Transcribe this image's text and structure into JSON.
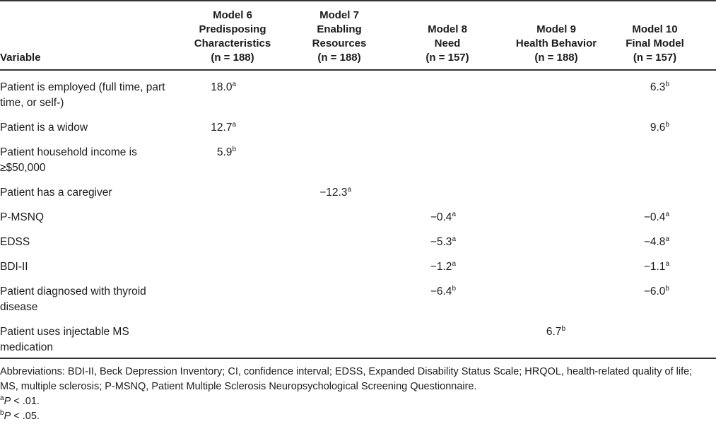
{
  "table": {
    "header": {
      "variable_label": "Variable",
      "models": [
        {
          "lines": [
            "Model 6",
            "Predisposing",
            "Characteristics",
            "(n = 188)"
          ]
        },
        {
          "lines": [
            "Model 7",
            "Enabling",
            "Resources",
            "(n = 188)"
          ]
        },
        {
          "lines": [
            "Model 8",
            "Need",
            "(n = 157)"
          ]
        },
        {
          "lines": [
            "Model 9",
            "Health Behavior",
            "(n = 188)"
          ]
        },
        {
          "lines": [
            "Model 10",
            "Final Model",
            "(n = 157)"
          ]
        }
      ]
    },
    "rows": [
      {
        "variable": "Patient is employed (full time, part time, or self-)",
        "values": [
          {
            "v": "18.0",
            "sup": "a"
          },
          null,
          null,
          null,
          {
            "v": "6.3",
            "sup": "b"
          }
        ]
      },
      {
        "variable": "Patient is a widow",
        "values": [
          {
            "v": "12.7",
            "sup": "a"
          },
          null,
          null,
          null,
          {
            "v": "9.6",
            "sup": "b"
          }
        ]
      },
      {
        "variable": "Patient household income is ≥$50,000",
        "values": [
          {
            "v": "5.9",
            "sup": "b"
          },
          null,
          null,
          null,
          null
        ]
      },
      {
        "variable": "Patient has a caregiver",
        "values": [
          null,
          {
            "v": "−12.3",
            "sup": "a"
          },
          null,
          null,
          null
        ]
      },
      {
        "variable": "P-MSNQ",
        "values": [
          null,
          null,
          {
            "v": "−0.4",
            "sup": "a"
          },
          null,
          {
            "v": "−0.4",
            "sup": "a"
          }
        ]
      },
      {
        "variable": "EDSS",
        "values": [
          null,
          null,
          {
            "v": "−5.3",
            "sup": "a"
          },
          null,
          {
            "v": "−4.8",
            "sup": "a"
          }
        ]
      },
      {
        "variable": "BDI-II",
        "values": [
          null,
          null,
          {
            "v": "−1.2",
            "sup": "a"
          },
          null,
          {
            "v": "−1.1",
            "sup": "a"
          }
        ]
      },
      {
        "variable": "Patient diagnosed with thyroid disease",
        "values": [
          null,
          null,
          {
            "v": "−6.4",
            "sup": "b"
          },
          null,
          {
            "v": "−6.0",
            "sup": "b"
          }
        ]
      },
      {
        "variable": "Patient uses injectable MS medication",
        "values": [
          null,
          null,
          null,
          {
            "v": "6.7",
            "sup": "b"
          },
          null
        ]
      }
    ]
  },
  "footnotes": {
    "abbreviations": "Abbreviations: BDI-II, Beck Depression Inventory; CI, confidence interval; EDSS, Expanded Disability Status Scale; HRQOL, health-related quality of life; MS, multiple sclerosis; P-MSNQ, Patient Multiple Sclerosis Neuropsychological Screening Questionnaire.",
    "note_a": {
      "sup": "a",
      "stat": "P",
      "rest": " < .01."
    },
    "note_b": {
      "sup": "b",
      "stat": "P",
      "rest": " < .05."
    }
  },
  "colors": {
    "text": "#1c1c1c",
    "rule": "#333333",
    "background": "#ffffff"
  }
}
